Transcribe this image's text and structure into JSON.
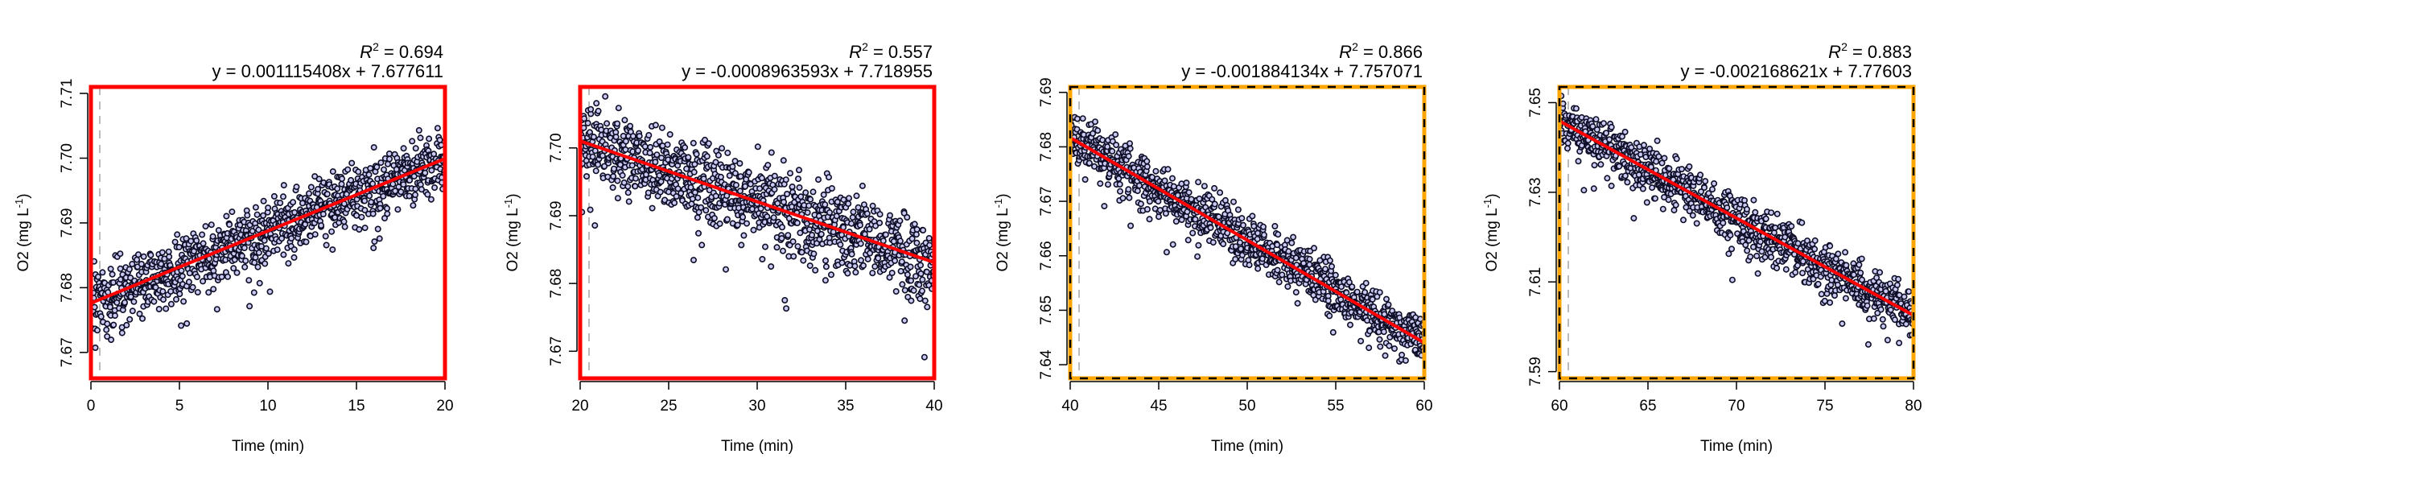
{
  "figure": {
    "xlabel": "Time (min)",
    "ylabel_prefix": "O2 (mg L",
    "ylabel_sup": "-1",
    "ylabel_suffix": ")",
    "r2_label": "R",
    "r2_sup": "2",
    "colors": {
      "point_fill": "#c9c9f2",
      "point_stroke": "#0d0d26",
      "fit_line": "#ff0000",
      "frame_solid": "#ff0000",
      "frame_dashed_a": "#ffa500",
      "frame_dashed_b": "#000000",
      "marker_line": "#bbbbbb"
    }
  },
  "chart_data": [
    {
      "type": "scatter",
      "xlabel": "Time (min)",
      "ylabel": "O2 (mg L-1)",
      "xlim": [
        0,
        20
      ],
      "ylim": [
        7.666,
        7.711
      ],
      "xticks": [
        "0",
        "5",
        "10",
        "15",
        "20"
      ],
      "yticks": [
        "7.67",
        "7.68",
        "7.69",
        "7.70",
        "7.71"
      ],
      "xtick_values": [
        0,
        5,
        10,
        15,
        20
      ],
      "ytick_values": [
        7.67,
        7.68,
        7.69,
        7.7,
        7.71
      ],
      "r2": "0.694",
      "equation": "y = 0.001115408x + 7.677611",
      "slope": 0.001115408,
      "intercept": 7.677611,
      "marker_x": 0.5,
      "noise": 0.0036,
      "frame": "solid",
      "grid": false
    },
    {
      "type": "scatter",
      "xlabel": "Time (min)",
      "ylabel": "O2 (mg L-1)",
      "xlim": [
        20,
        40
      ],
      "ylim": [
        7.666,
        7.709
      ],
      "xticks": [
        "20",
        "25",
        "30",
        "35",
        "40"
      ],
      "yticks": [
        "7.67",
        "7.68",
        "7.69",
        "7.70"
      ],
      "xtick_values": [
        20,
        25,
        30,
        35,
        40
      ],
      "ytick_values": [
        7.67,
        7.68,
        7.69,
        7.7
      ],
      "r2": "0.557",
      "equation": "y = -0.0008963593x + 7.718955",
      "slope": -0.0008963593,
      "intercept": 7.718955,
      "marker_x": 20.5,
      "noise": 0.0045,
      "frame": "solid",
      "grid": false
    },
    {
      "type": "scatter",
      "xlabel": "Time (min)",
      "ylabel": "O2 (mg L-1)",
      "xlim": [
        40,
        60
      ],
      "ylim": [
        7.6375,
        7.691
      ],
      "xticks": [
        "40",
        "45",
        "50",
        "55",
        "60"
      ],
      "yticks": [
        "7.64",
        "7.65",
        "7.66",
        "7.67",
        "7.68",
        "7.69"
      ],
      "xtick_values": [
        40,
        45,
        50,
        55,
        60
      ],
      "ytick_values": [
        7.64,
        7.65,
        7.66,
        7.67,
        7.68,
        7.69
      ],
      "r2": "0.866",
      "equation": "y = -0.001884134x + 7.757071",
      "slope": -0.001884134,
      "intercept": 7.757071,
      "marker_x": 40.5,
      "noise": 0.0036,
      "frame": "dashed",
      "grid": false
    },
    {
      "type": "scatter",
      "xlabel": "Time (min)",
      "ylabel": "O2 (mg L-1)",
      "xlim": [
        60,
        80
      ],
      "ylim": [
        7.5885,
        7.6535
      ],
      "xticks": [
        "60",
        "65",
        "70",
        "75",
        "80"
      ],
      "yticks": [
        "7.59",
        "7.61",
        "7.63",
        "7.65"
      ],
      "xtick_values": [
        60,
        65,
        70,
        75,
        80
      ],
      "ytick_values": [
        7.59,
        7.61,
        7.63,
        7.65
      ],
      "r2": "0.883",
      "equation": "y = -0.002168621x + 7.77603",
      "slope": -0.002168621,
      "intercept": 7.77603,
      "marker_x": 60.5,
      "noise": 0.0042,
      "frame": "dashed",
      "grid": false
    }
  ]
}
